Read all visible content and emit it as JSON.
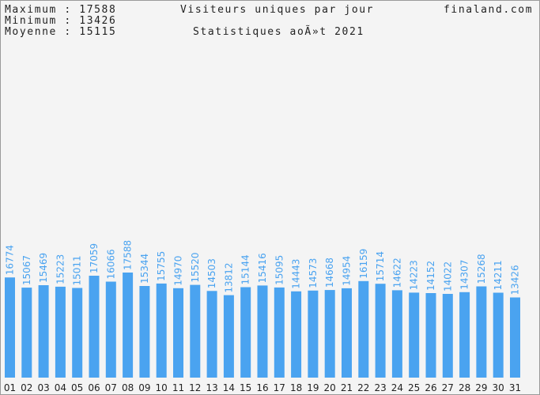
{
  "header": {
    "max_label": "Maximum",
    "max_value": "17588",
    "min_label": "Minimum",
    "min_value": "13426",
    "avg_label": "Moyenne",
    "avg_value": "15115",
    "title": "Visiteurs uniques par jour",
    "subtitle": "Statistiques aoÃ»t 2021",
    "site": "finaland.com"
  },
  "colors": {
    "bar": "#4aa3f0",
    "label": "#4aa3f0",
    "axis_text": "#222222",
    "background": "#f4f4f4"
  },
  "chart_data": {
    "type": "bar",
    "title": "Visiteurs uniques par jour",
    "subtitle": "Statistiques aoÃ»t 2021",
    "categories": [
      "01",
      "02",
      "03",
      "04",
      "05",
      "06",
      "07",
      "08",
      "09",
      "10",
      "11",
      "12",
      "13",
      "14",
      "15",
      "16",
      "17",
      "18",
      "19",
      "20",
      "21",
      "22",
      "23",
      "24",
      "25",
      "26",
      "27",
      "28",
      "29",
      "30",
      "31"
    ],
    "values": [
      16774,
      15067,
      15469,
      15223,
      15011,
      17059,
      16066,
      17588,
      15344,
      15755,
      14970,
      15520,
      14503,
      13812,
      15144,
      15416,
      15095,
      14443,
      14573,
      14668,
      14954,
      16159,
      15714,
      14622,
      14223,
      14152,
      14022,
      14307,
      15268,
      14211,
      13426
    ],
    "ylim": [
      0,
      35176
    ],
    "grid": false,
    "legend": "none",
    "data_labels": true
  }
}
